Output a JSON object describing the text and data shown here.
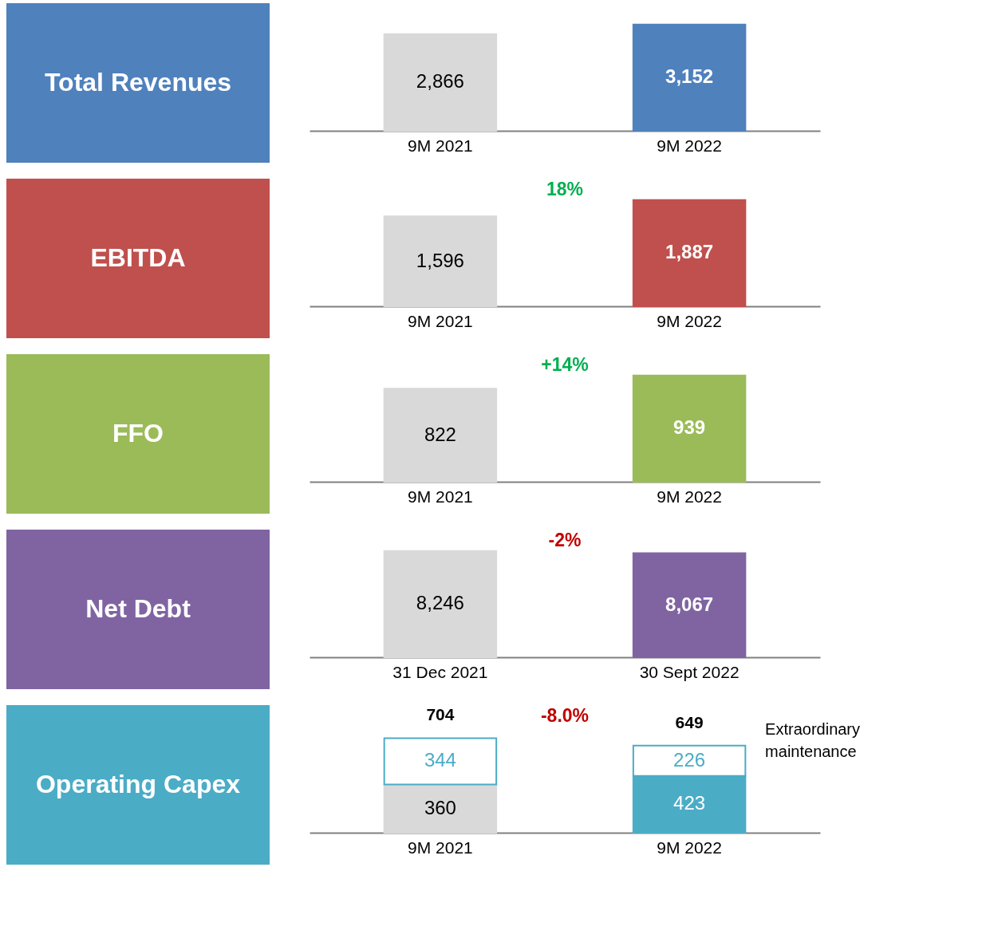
{
  "chart_data": [
    {
      "type": "bar",
      "title": "Total Revenues",
      "categories": [
        "9M 2021",
        "9M 2022"
      ],
      "values": [
        2866,
        3152
      ],
      "value_labels": [
        "2,866",
        "3,152"
      ],
      "colors": [
        "#d9d9d9",
        "#4f81bd"
      ]
    },
    {
      "type": "bar",
      "title": "EBITDA",
      "categories": [
        "9M 2021",
        "9M 2022"
      ],
      "values": [
        1596,
        1887
      ],
      "value_labels": [
        "1,596",
        "1,887"
      ],
      "colors": [
        "#d9d9d9",
        "#c0504d"
      ],
      "annotations": [
        "18%"
      ]
    },
    {
      "type": "bar",
      "title": "FFO",
      "categories": [
        "9M 2021",
        "9M 2022"
      ],
      "values": [
        822,
        939
      ],
      "value_labels": [
        "822",
        "939"
      ],
      "colors": [
        "#d9d9d9",
        "#9bbb59"
      ],
      "annotations": [
        "+14%"
      ]
    },
    {
      "type": "bar",
      "title": "Net Debt",
      "categories": [
        "31 Dec 2021",
        "30 Sept 2022"
      ],
      "values": [
        8246,
        8067
      ],
      "value_labels": [
        "8,246",
        "8,067"
      ],
      "colors": [
        "#d9d9d9",
        "#8064a2"
      ],
      "annotations": [
        "-2%"
      ]
    },
    {
      "type": "bar",
      "title": "Operating Capex",
      "categories": [
        "9M 2021",
        "9M 2022"
      ],
      "stacked": true,
      "series": [
        {
          "colors": [
            "#d9d9d9",
            "#4bacc6"
          ],
          "values": [
            360,
            423
          ],
          "value_labels": [
            "360",
            "423"
          ]
        },
        {
          "name": "Extraordinary maintenance",
          "color": "#4bacc6",
          "values": [
            344,
            226
          ],
          "value_labels": [
            "344",
            "226"
          ]
        }
      ],
      "totals": [
        "704",
        "649"
      ],
      "annotations": [
        "-8.0%"
      ]
    }
  ]
}
